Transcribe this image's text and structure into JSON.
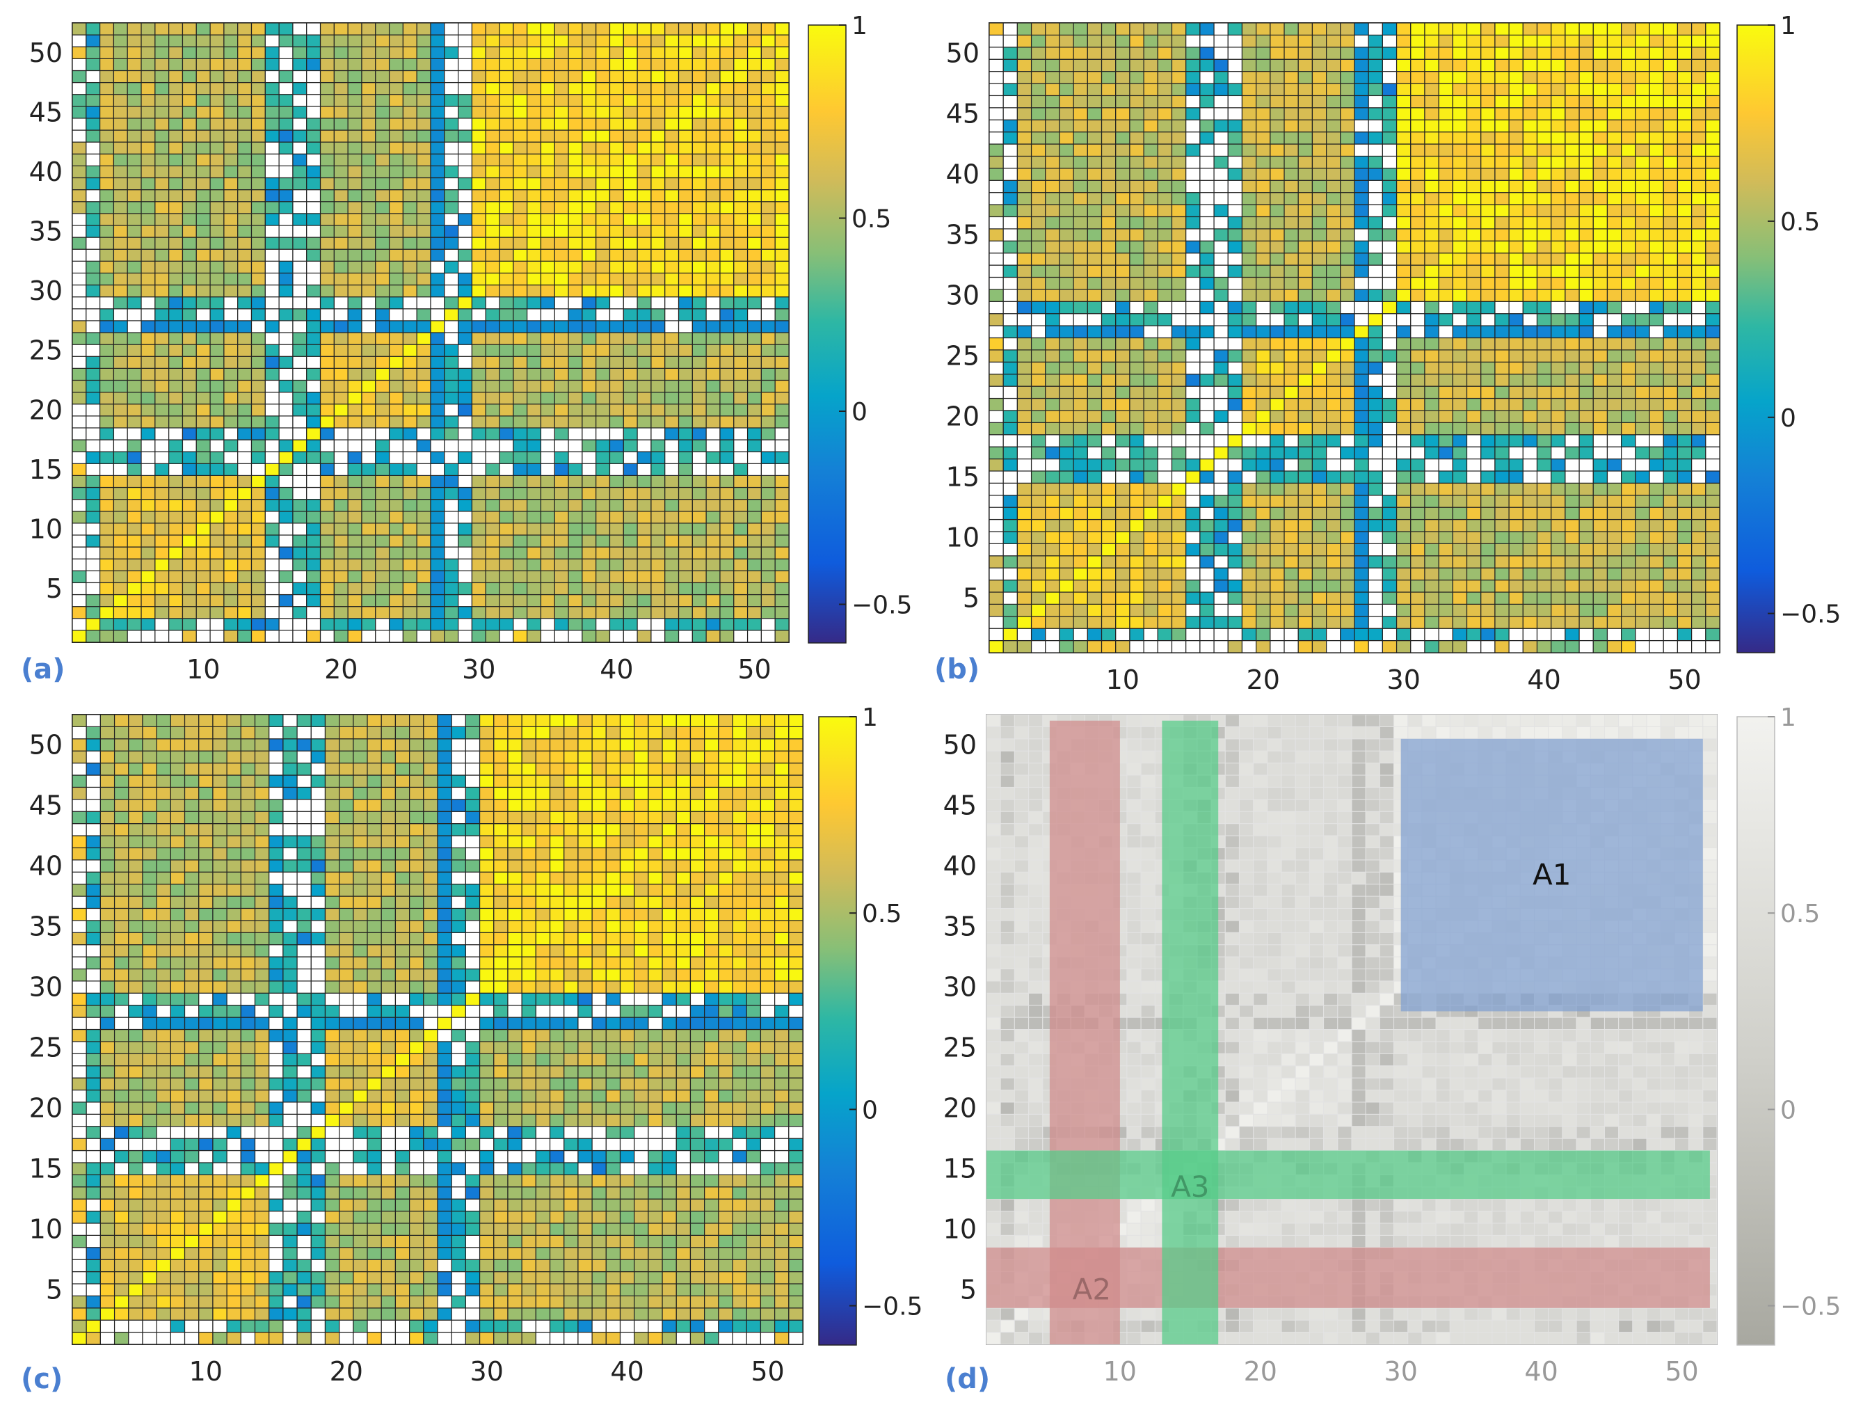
{
  "chart_data": [
    {
      "type": "heatmap",
      "panel_label": "(a)",
      "variant": "a",
      "grid_size": [
        52,
        52
      ],
      "x_ticks": [
        "10",
        "20",
        "30",
        "40",
        "50"
      ],
      "y_ticks": [
        "5",
        "10",
        "15",
        "20",
        "25",
        "30",
        "35",
        "40",
        "45",
        "50"
      ],
      "x_tick_values": [
        10,
        20,
        30,
        40,
        50
      ],
      "y_tick_values": [
        5,
        10,
        15,
        20,
        25,
        30,
        35,
        40,
        45,
        50
      ],
      "colorbar": {
        "range": [
          -0.6,
          1
        ],
        "ticks": [
          "1",
          "0.5",
          "0",
          "−0.5"
        ],
        "tick_values": [
          1,
          0.5,
          0,
          -0.5
        ]
      },
      "values_approx": {
        "cluster_A_indices": "2-13, 18-25, 29-51 (within-cluster correlation ~0.5-0.95)",
        "cluster_B_indices": "14-17, 26-28 (weak correlation ~0-0.2, many blank cells)",
        "strongly_negative_indices": [
          27
        ],
        "diagonal_value": 1
      }
    },
    {
      "type": "heatmap",
      "panel_label": "(b)",
      "variant": "b",
      "grid_size": [
        52,
        52
      ],
      "x_ticks": [
        "10",
        "20",
        "30",
        "40",
        "50"
      ],
      "y_ticks": [
        "5",
        "10",
        "15",
        "20",
        "25",
        "30",
        "35",
        "40",
        "45",
        "50"
      ],
      "x_tick_values": [
        10,
        20,
        30,
        40,
        50
      ],
      "y_tick_values": [
        5,
        10,
        15,
        20,
        25,
        30,
        35,
        40,
        45,
        50
      ],
      "colorbar": {
        "range": [
          -0.6,
          1
        ],
        "ticks": [
          "1",
          "0.5",
          "0",
          "−0.5"
        ],
        "tick_values": [
          1,
          0.5,
          0,
          -0.5
        ]
      },
      "values_approx": {
        "cluster_A_indices": "2-13, 18-25, 29-51",
        "cluster_B_indices": "14-17, 26-28",
        "strongly_negative_indices": [
          27
        ],
        "diagonal_value": 1
      }
    },
    {
      "type": "heatmap",
      "panel_label": "(c)",
      "variant": "c",
      "grid_size": [
        52,
        52
      ],
      "x_ticks": [
        "10",
        "20",
        "30",
        "40",
        "50"
      ],
      "y_ticks": [
        "5",
        "10",
        "15",
        "20",
        "25",
        "30",
        "35",
        "40",
        "45",
        "50"
      ],
      "x_tick_values": [
        10,
        20,
        30,
        40,
        50
      ],
      "y_tick_values": [
        5,
        10,
        15,
        20,
        25,
        30,
        35,
        40,
        45,
        50
      ],
      "colorbar": {
        "range": [
          -0.6,
          1
        ],
        "ticks": [
          "1",
          "0.5",
          "0",
          "−0.5"
        ],
        "tick_values": [
          1,
          0.5,
          0,
          -0.5
        ]
      },
      "values_approx": {
        "cluster_A_indices": "2-13, 18-25, 29-51",
        "cluster_B_indices": "14-17, 26-28",
        "strongly_negative_indices": [
          27
        ],
        "diagonal_value": 1
      }
    },
    {
      "type": "heatmap",
      "panel_label": "(d)",
      "variant": "d",
      "grayscale": true,
      "grid_size": [
        52,
        52
      ],
      "x_ticks": [
        "10",
        "20",
        "30",
        "40",
        "50"
      ],
      "y_ticks": [
        "5",
        "10",
        "15",
        "20",
        "25",
        "30",
        "35",
        "40",
        "45",
        "50"
      ],
      "x_tick_values": [
        10,
        20,
        30,
        40,
        50
      ],
      "y_tick_values": [
        5,
        10,
        15,
        20,
        25,
        30,
        35,
        40,
        45,
        50
      ],
      "colorbar": {
        "range": [
          -0.6,
          1
        ],
        "ticks": [
          "1",
          "0.5",
          "0",
          "−0.5"
        ],
        "tick_values": [
          1,
          0.5,
          0,
          -0.5
        ]
      },
      "regions": [
        {
          "label": "A1",
          "color": "#7f9fd0",
          "x": [
            30,
            51.5
          ],
          "y": [
            28,
            50.5
          ]
        },
        {
          "label": "A2",
          "color": "#d08b8b",
          "x": [
            5,
            10
          ],
          "y": [
            0.5,
            52
          ],
          "label_pos": [
            8,
            5
          ]
        },
        {
          "label": "A2",
          "color": "#d08b8b",
          "x": [
            0.5,
            52
          ],
          "y": [
            3.5,
            8.5
          ],
          "hide_label": true
        },
        {
          "label": "A3",
          "color": "#55cc88",
          "x": [
            13,
            17
          ],
          "y": [
            0.5,
            52
          ],
          "label_pos": [
            15,
            13.5
          ]
        },
        {
          "label": "A3",
          "color": "#55cc88",
          "x": [
            0.5,
            52
          ],
          "y": [
            12.5,
            16.5
          ],
          "hide_label": true
        }
      ]
    }
  ]
}
